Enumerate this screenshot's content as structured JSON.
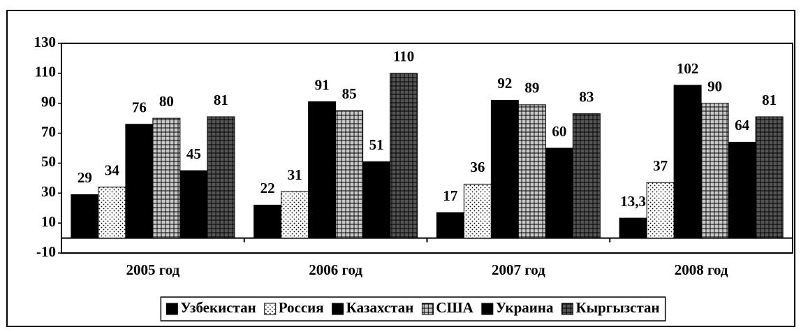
{
  "chart_data": {
    "type": "bar",
    "categories": [
      "2005 год",
      "2006 год",
      "2007 год",
      "2008 год"
    ],
    "series": [
      {
        "name": "Узбекистан",
        "color": "#000000",
        "pattern": "solid",
        "values": [
          29,
          22,
          17,
          13.3
        ],
        "value_labels": [
          "29",
          "22",
          "17",
          "13,3"
        ]
      },
      {
        "name": "Россия",
        "color": "#ffffff",
        "pattern": "dots",
        "values": [
          34,
          31,
          36,
          37
        ]
      },
      {
        "name": "Казахстан",
        "color": "#000000",
        "pattern": "solid",
        "values": [
          76,
          91,
          92,
          102
        ]
      },
      {
        "name": "США",
        "color": "#c8c8c8",
        "pattern": "grid",
        "values": [
          80,
          85,
          89,
          90
        ]
      },
      {
        "name": "Украина",
        "color": "#000000",
        "pattern": "solid",
        "values": [
          45,
          51,
          60,
          64
        ]
      },
      {
        "name": "Кыргызстан",
        "color": "#555555",
        "pattern": "grid",
        "values": [
          81,
          110,
          83,
          81
        ]
      }
    ],
    "ylim": [
      -10,
      130
    ],
    "yticks": [
      -10,
      10,
      30,
      50,
      70,
      90,
      110,
      130
    ],
    "legend": "bottom"
  }
}
